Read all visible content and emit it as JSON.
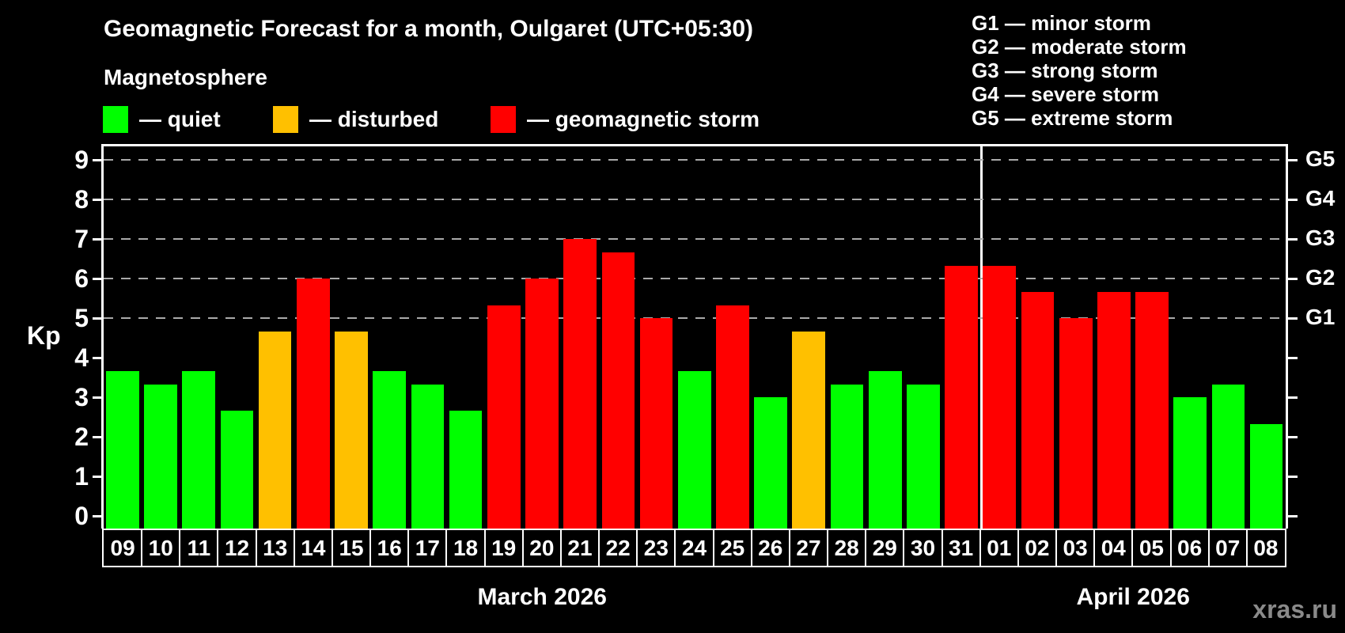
{
  "title": "Geomagnetic Forecast for a month, Oulgaret (UTC+05:30)",
  "subtitle": "Magnetosphere",
  "legend": {
    "items": [
      {
        "status": "quiet",
        "label": "— quiet"
      },
      {
        "status": "disturbed",
        "label": "— disturbed"
      },
      {
        "status": "storm",
        "label": "— geomagnetic storm"
      }
    ]
  },
  "g_legend": {
    "lines": [
      "G1 — minor storm",
      "G2 — moderate storm",
      "G3 — strong storm",
      "G4 — severe storm",
      "G5 — extreme storm"
    ]
  },
  "axis": {
    "kp_label": "Kp",
    "left_ticks": [
      "0",
      "1",
      "2",
      "3",
      "4",
      "5",
      "6",
      "7",
      "8",
      "9"
    ],
    "right_g_ticks": [
      {
        "kp": 5,
        "label": "G1"
      },
      {
        "kp": 6,
        "label": "G2"
      },
      {
        "kp": 7,
        "label": "G3"
      },
      {
        "kp": 8,
        "label": "G4"
      },
      {
        "kp": 9,
        "label": "G5"
      }
    ]
  },
  "colors": {
    "quiet": "#00ff00",
    "disturbed": "#ffc000",
    "storm": "#ff0000",
    "gridline": "#aaaaaa",
    "frame": "#ffffff",
    "background": "#000000",
    "watermark": "#8a8a8a"
  },
  "watermark": "xras.ru",
  "chart_data": {
    "type": "bar",
    "title": "Geomagnetic Forecast for a month, Oulgaret (UTC+05:30)",
    "ylabel": "Kp",
    "ylim": [
      0,
      9
    ],
    "grid": "dashed horizontal at Kp 5-9 (G1-G5 levels)",
    "legend_position": "top-left",
    "categories": [
      "09",
      "10",
      "11",
      "12",
      "13",
      "14",
      "15",
      "16",
      "17",
      "18",
      "19",
      "20",
      "21",
      "22",
      "23",
      "24",
      "25",
      "26",
      "27",
      "28",
      "29",
      "30",
      "31",
      "01",
      "02",
      "03",
      "04",
      "05",
      "06",
      "07",
      "08"
    ],
    "values": [
      3.67,
      3.33,
      3.67,
      2.67,
      4.67,
      6.0,
      4.67,
      3.67,
      3.33,
      2.67,
      5.33,
      6.0,
      7.0,
      6.67,
      5.0,
      3.67,
      5.33,
      3.0,
      4.67,
      3.33,
      3.67,
      3.33,
      6.33,
      6.33,
      5.67,
      5.0,
      5.67,
      5.67,
      3.0,
      3.33,
      2.33
    ],
    "status": [
      "quiet",
      "quiet",
      "quiet",
      "quiet",
      "disturbed",
      "storm",
      "disturbed",
      "quiet",
      "quiet",
      "quiet",
      "storm",
      "storm",
      "storm",
      "storm",
      "storm",
      "quiet",
      "storm",
      "quiet",
      "disturbed",
      "quiet",
      "quiet",
      "quiet",
      "storm",
      "storm",
      "storm",
      "storm",
      "storm",
      "storm",
      "quiet",
      "quiet",
      "quiet"
    ],
    "gridlines_at": [
      5,
      6,
      7,
      8,
      9
    ],
    "months": [
      {
        "label": "March 2026",
        "days": 23
      },
      {
        "label": "April 2026",
        "days": 8
      }
    ],
    "month_separator_after_index": 22
  }
}
